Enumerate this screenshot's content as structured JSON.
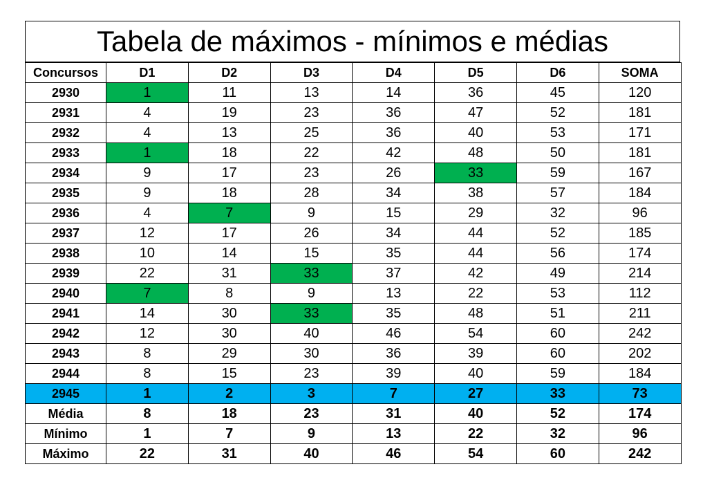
{
  "title": "Tabela de máximos - mínimos e médias",
  "headers": [
    "Concursos",
    "D1",
    "D2",
    "D3",
    "D4",
    "D5",
    "D6",
    "SOMA"
  ],
  "rows": [
    {
      "concurso": "2930",
      "values": [
        "1",
        "11",
        "13",
        "14",
        "36",
        "45",
        "120"
      ],
      "highlight": [
        0
      ]
    },
    {
      "concurso": "2931",
      "values": [
        "4",
        "19",
        "23",
        "36",
        "47",
        "52",
        "181"
      ],
      "highlight": []
    },
    {
      "concurso": "2932",
      "values": [
        "4",
        "13",
        "25",
        "36",
        "40",
        "53",
        "171"
      ],
      "highlight": []
    },
    {
      "concurso": "2933",
      "values": [
        "1",
        "18",
        "22",
        "42",
        "48",
        "50",
        "181"
      ],
      "highlight": [
        0
      ]
    },
    {
      "concurso": "2934",
      "values": [
        "9",
        "17",
        "23",
        "26",
        "33",
        "59",
        "167"
      ],
      "highlight": [
        4
      ]
    },
    {
      "concurso": "2935",
      "values": [
        "9",
        "18",
        "28",
        "34",
        "38",
        "57",
        "184"
      ],
      "highlight": []
    },
    {
      "concurso": "2936",
      "values": [
        "4",
        "7",
        "9",
        "15",
        "29",
        "32",
        "96"
      ],
      "highlight": [
        1
      ]
    },
    {
      "concurso": "2937",
      "values": [
        "12",
        "17",
        "26",
        "34",
        "44",
        "52",
        "185"
      ],
      "highlight": []
    },
    {
      "concurso": "2938",
      "values": [
        "10",
        "14",
        "15",
        "35",
        "44",
        "56",
        "174"
      ],
      "highlight": []
    },
    {
      "concurso": "2939",
      "values": [
        "22",
        "31",
        "33",
        "37",
        "42",
        "49",
        "214"
      ],
      "highlight": [
        2
      ]
    },
    {
      "concurso": "2940",
      "values": [
        "7",
        "8",
        "9",
        "13",
        "22",
        "53",
        "112"
      ],
      "highlight": [
        0
      ]
    },
    {
      "concurso": "2941",
      "values": [
        "14",
        "30",
        "33",
        "35",
        "48",
        "51",
        "211"
      ],
      "highlight": [
        2
      ]
    },
    {
      "concurso": "2942",
      "values": [
        "12",
        "30",
        "40",
        "46",
        "54",
        "60",
        "242"
      ],
      "highlight": []
    },
    {
      "concurso": "2943",
      "values": [
        "8",
        "29",
        "30",
        "36",
        "39",
        "60",
        "202"
      ],
      "highlight": []
    },
    {
      "concurso": "2944",
      "values": [
        "8",
        "15",
        "23",
        "39",
        "40",
        "59",
        "184"
      ],
      "highlight": []
    }
  ],
  "current": {
    "concurso": "2945",
    "values": [
      "1",
      "2",
      "3",
      "7",
      "27",
      "33",
      "73"
    ]
  },
  "summary": [
    {
      "label": "Média",
      "values": [
        "8",
        "18",
        "23",
        "31",
        "40",
        "52",
        "174"
      ]
    },
    {
      "label": "Mínimo",
      "values": [
        "1",
        "7",
        "9",
        "13",
        "22",
        "32",
        "96"
      ]
    },
    {
      "label": "Máximo",
      "values": [
        "22",
        "31",
        "40",
        "46",
        "54",
        "60",
        "242"
      ]
    }
  ],
  "colors": {
    "min_highlight": "#00b050",
    "current_row": "#00b0f0"
  }
}
